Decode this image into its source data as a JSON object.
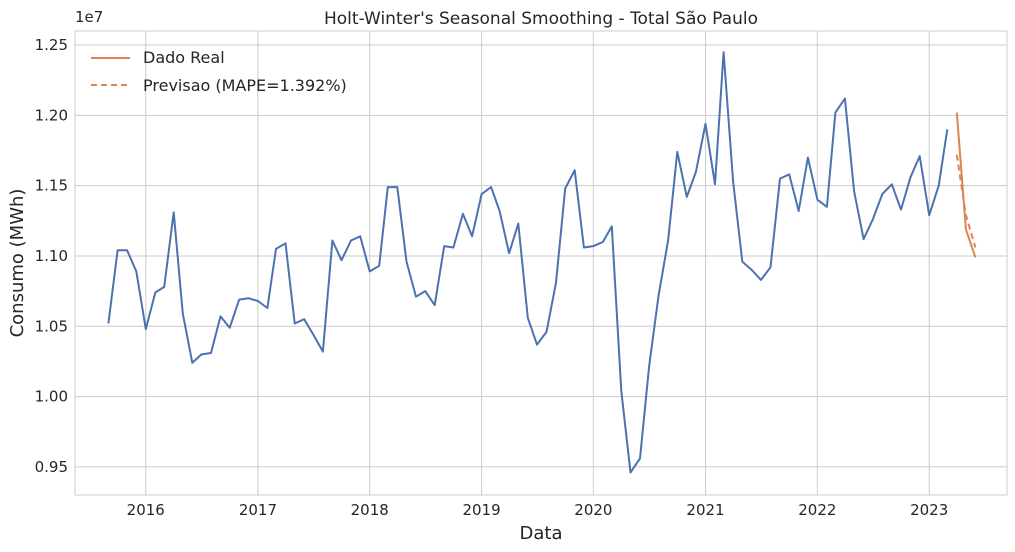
{
  "chart_data": {
    "type": "line",
    "title": "Holt-Winter's Seasonal Smoothing - Total São Paulo",
    "xlabel": "Data",
    "ylabel": "Consumo (MWh)",
    "y_offset_label": "1e7",
    "xlim": [
      "2015-05-15",
      "2023-09-12"
    ],
    "ylim": [
      9300000,
      12600000
    ],
    "x_ticks": [
      "2016",
      "2017",
      "2018",
      "2019",
      "2020",
      "2021",
      "2022",
      "2023"
    ],
    "y_ticks": [
      "0.95",
      "1.00",
      "1.05",
      "1.10",
      "1.15",
      "1.20",
      "1.25"
    ],
    "grid": true,
    "legend_position": "top-left",
    "series": [
      {
        "name": "",
        "color": "#4c72b0",
        "style": "solid",
        "x": [
          "2015-09-01",
          "2015-10-01",
          "2015-11-01",
          "2015-12-01",
          "2016-01-01",
          "2016-02-01",
          "2016-03-01",
          "2016-04-01",
          "2016-05-01",
          "2016-06-01",
          "2016-07-01",
          "2016-08-01",
          "2016-09-01",
          "2016-10-01",
          "2016-11-01",
          "2016-12-01",
          "2017-01-01",
          "2017-02-01",
          "2017-03-01",
          "2017-04-01",
          "2017-05-01",
          "2017-06-01",
          "2017-07-01",
          "2017-08-01",
          "2017-09-01",
          "2017-10-01",
          "2017-11-01",
          "2017-12-01",
          "2018-01-01",
          "2018-02-01",
          "2018-03-01",
          "2018-04-01",
          "2018-05-01",
          "2018-06-01",
          "2018-07-01",
          "2018-08-01",
          "2018-09-01",
          "2018-10-01",
          "2018-11-01",
          "2018-12-01",
          "2019-01-01",
          "2019-02-01",
          "2019-03-01",
          "2019-04-01",
          "2019-05-01",
          "2019-06-01",
          "2019-07-01",
          "2019-08-01",
          "2019-09-01",
          "2019-10-01",
          "2019-11-01",
          "2019-12-01",
          "2020-01-01",
          "2020-02-01",
          "2020-03-01",
          "2020-04-01",
          "2020-05-01",
          "2020-06-01",
          "2020-07-01",
          "2020-08-01",
          "2020-09-01",
          "2020-10-01",
          "2020-11-01",
          "2020-12-01",
          "2021-01-01",
          "2021-02-01",
          "2021-03-01",
          "2021-04-01",
          "2021-05-01",
          "2021-06-01",
          "2021-07-01",
          "2021-08-01",
          "2021-09-01",
          "2021-10-01",
          "2021-11-01",
          "2021-12-01",
          "2022-01-01",
          "2022-02-01",
          "2022-03-01",
          "2022-04-01",
          "2022-05-01",
          "2022-06-01",
          "2022-07-01",
          "2022-08-01",
          "2022-09-01",
          "2022-10-01",
          "2022-11-01",
          "2022-12-01",
          "2023-01-01",
          "2023-02-01",
          "2023-03-01"
        ],
        "values": [
          10520000,
          11040000,
          11040000,
          10890000,
          10480000,
          10740000,
          10780000,
          11310000,
          10590000,
          10240000,
          10300000,
          10310000,
          10570000,
          10490000,
          10690000,
          10700000,
          10680000,
          10630000,
          11050000,
          11090000,
          10520000,
          10550000,
          10440000,
          10320000,
          11110000,
          10970000,
          11110000,
          11140000,
          10890000,
          10930000,
          11490000,
          11490000,
          10960000,
          10710000,
          10750000,
          10650000,
          11070000,
          11060000,
          11300000,
          11140000,
          11440000,
          11490000,
          11320000,
          11020000,
          11230000,
          10560000,
          10370000,
          10460000,
          10810000,
          11480000,
          11610000,
          11060000,
          11070000,
          11100000,
          11210000,
          10040000,
          9460000,
          9560000,
          10220000,
          10720000,
          11110000,
          11740000,
          11420000,
          11600000,
          11940000,
          11510000,
          12450000,
          11530000,
          10960000,
          10900000,
          10830000,
          10920000,
          11550000,
          11580000,
          11320000,
          11700000,
          11400000,
          11350000,
          12020000,
          12120000,
          11460000,
          11120000,
          11260000,
          11440000,
          11510000,
          11330000,
          11560000,
          11710000,
          11290000,
          11500000,
          11900000
        ]
      },
      {
        "name": "Dado Real",
        "color": "#dd8452",
        "style": "solid",
        "x": [
          "2023-04-01",
          "2023-05-01",
          "2023-06-01"
        ],
        "values": [
          12020000,
          11190000,
          10990000
        ]
      },
      {
        "name": "Previsao (MAPE=1.392%)",
        "color": "#dd8452",
        "style": "dashed",
        "x": [
          "2023-04-01",
          "2023-05-01",
          "2023-06-01"
        ],
        "values": [
          11720000,
          11290000,
          11060000
        ]
      }
    ]
  }
}
